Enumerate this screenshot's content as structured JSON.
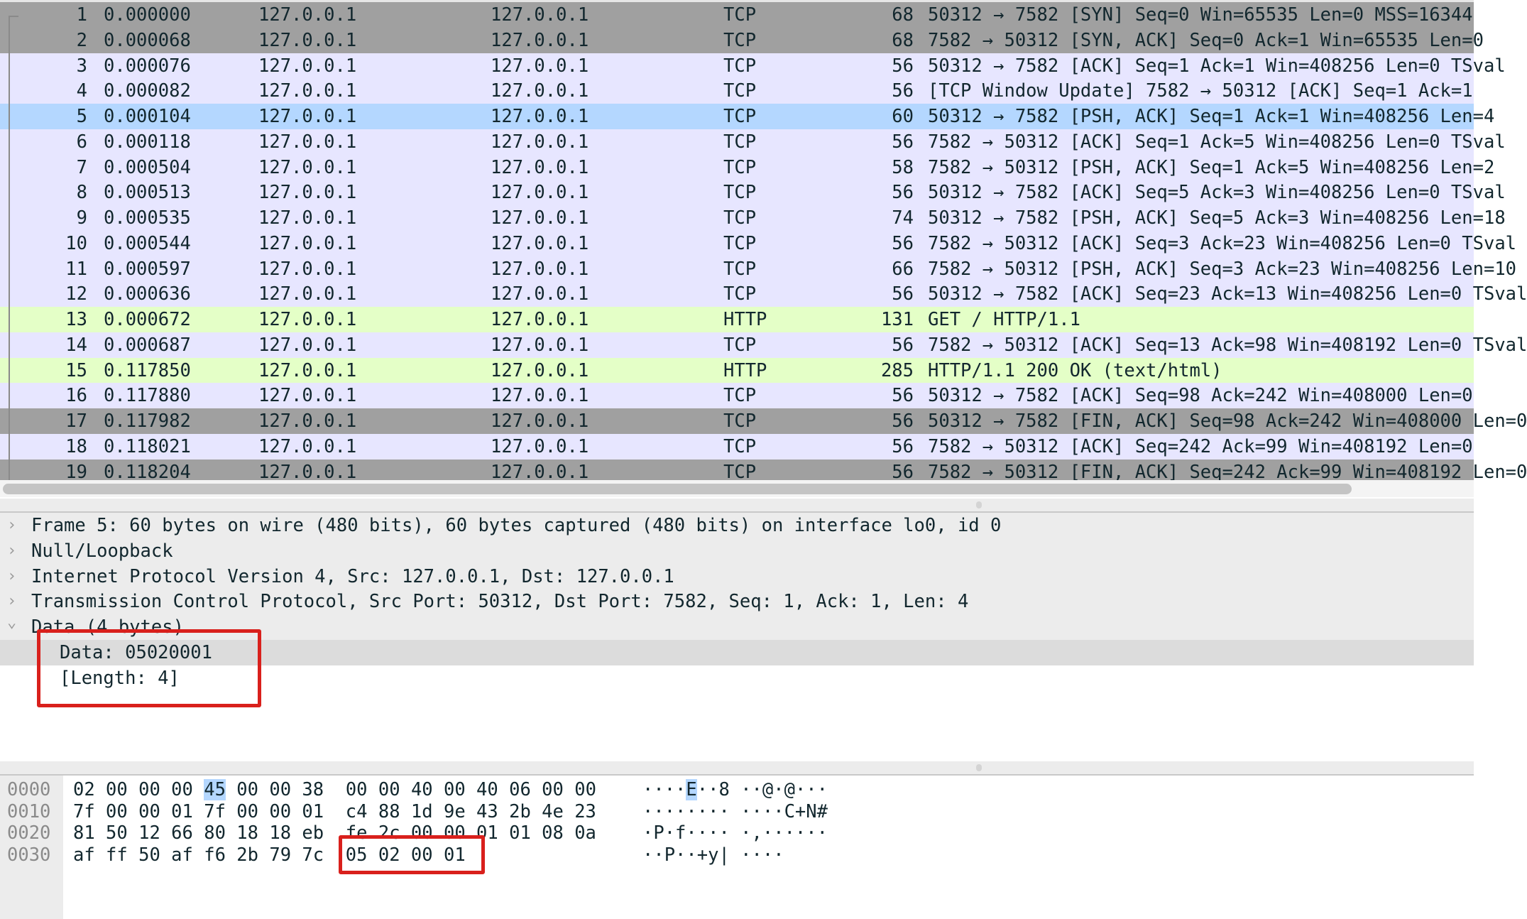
{
  "colors": {
    "row_gray": "#a0a0a0",
    "row_tcp": "#e7e6ff",
    "row_selected": "#b4d7ff",
    "row_http": "#e4ffc7",
    "annotation_red": "#d9201c"
  },
  "packet_list": {
    "rows": [
      {
        "no": "1",
        "time": "0.000000",
        "src": "127.0.0.1",
        "dst": "127.0.0.1",
        "proto": "TCP",
        "len": "68",
        "info": "50312 → 7582 [SYN] Seq=0 Win=65535 Len=0 MSS=16344",
        "style": "gray"
      },
      {
        "no": "2",
        "time": "0.000068",
        "src": "127.0.0.1",
        "dst": "127.0.0.1",
        "proto": "TCP",
        "len": "68",
        "info": "7582 → 50312 [SYN, ACK] Seq=0 Ack=1 Win=65535 Len=0",
        "style": "gray"
      },
      {
        "no": "3",
        "time": "0.000076",
        "src": "127.0.0.1",
        "dst": "127.0.0.1",
        "proto": "TCP",
        "len": "56",
        "info": "50312 → 7582 [ACK] Seq=1 Ack=1 Win=408256 Len=0 TSval",
        "style": "tcp"
      },
      {
        "no": "4",
        "time": "0.000082",
        "src": "127.0.0.1",
        "dst": "127.0.0.1",
        "proto": "TCP",
        "len": "56",
        "info": "[TCP Window Update] 7582 → 50312 [ACK] Seq=1 Ack=1",
        "style": "tcp"
      },
      {
        "no": "5",
        "time": "0.000104",
        "src": "127.0.0.1",
        "dst": "127.0.0.1",
        "proto": "TCP",
        "len": "60",
        "info": "50312 → 7582 [PSH, ACK] Seq=1 Ack=1 Win=408256 Len=4",
        "style": "selected"
      },
      {
        "no": "6",
        "time": "0.000118",
        "src": "127.0.0.1",
        "dst": "127.0.0.1",
        "proto": "TCP",
        "len": "56",
        "info": "7582 → 50312 [ACK] Seq=1 Ack=5 Win=408256 Len=0 TSval",
        "style": "tcp"
      },
      {
        "no": "7",
        "time": "0.000504",
        "src": "127.0.0.1",
        "dst": "127.0.0.1",
        "proto": "TCP",
        "len": "58",
        "info": "7582 → 50312 [PSH, ACK] Seq=1 Ack=5 Win=408256 Len=2",
        "style": "tcp"
      },
      {
        "no": "8",
        "time": "0.000513",
        "src": "127.0.0.1",
        "dst": "127.0.0.1",
        "proto": "TCP",
        "len": "56",
        "info": "50312 → 7582 [ACK] Seq=5 Ack=3 Win=408256 Len=0 TSval",
        "style": "tcp"
      },
      {
        "no": "9",
        "time": "0.000535",
        "src": "127.0.0.1",
        "dst": "127.0.0.1",
        "proto": "TCP",
        "len": "74",
        "info": "50312 → 7582 [PSH, ACK] Seq=5 Ack=3 Win=408256 Len=18",
        "style": "tcp"
      },
      {
        "no": "10",
        "time": "0.000544",
        "src": "127.0.0.1",
        "dst": "127.0.0.1",
        "proto": "TCP",
        "len": "56",
        "info": "7582 → 50312 [ACK] Seq=3 Ack=23 Win=408256 Len=0 TSval",
        "style": "tcp"
      },
      {
        "no": "11",
        "time": "0.000597",
        "src": "127.0.0.1",
        "dst": "127.0.0.1",
        "proto": "TCP",
        "len": "66",
        "info": "7582 → 50312 [PSH, ACK] Seq=3 Ack=23 Win=408256 Len=10",
        "style": "tcp"
      },
      {
        "no": "12",
        "time": "0.000636",
        "src": "127.0.0.1",
        "dst": "127.0.0.1",
        "proto": "TCP",
        "len": "56",
        "info": "50312 → 7582 [ACK] Seq=23 Ack=13 Win=408256 Len=0 TSval",
        "style": "tcp"
      },
      {
        "no": "13",
        "time": "0.000672",
        "src": "127.0.0.1",
        "dst": "127.0.0.1",
        "proto": "HTTP",
        "len": "131",
        "info": "GET / HTTP/1.1",
        "style": "http"
      },
      {
        "no": "14",
        "time": "0.000687",
        "src": "127.0.0.1",
        "dst": "127.0.0.1",
        "proto": "TCP",
        "len": "56",
        "info": "7582 → 50312 [ACK] Seq=13 Ack=98 Win=408192 Len=0 TSval",
        "style": "tcp"
      },
      {
        "no": "15",
        "time": "0.117850",
        "src": "127.0.0.1",
        "dst": "127.0.0.1",
        "proto": "HTTP",
        "len": "285",
        "info": "HTTP/1.1 200 OK  (text/html)",
        "style": "http"
      },
      {
        "no": "16",
        "time": "0.117880",
        "src": "127.0.0.1",
        "dst": "127.0.0.1",
        "proto": "TCP",
        "len": "56",
        "info": "50312 → 7582 [ACK] Seq=98 Ack=242 Win=408000 Len=0",
        "style": "tcp"
      },
      {
        "no": "17",
        "time": "0.117982",
        "src": "127.0.0.1",
        "dst": "127.0.0.1",
        "proto": "TCP",
        "len": "56",
        "info": "50312 → 7582 [FIN, ACK] Seq=98 Ack=242 Win=408000 Len=0",
        "style": "gray"
      },
      {
        "no": "18",
        "time": "0.118021",
        "src": "127.0.0.1",
        "dst": "127.0.0.1",
        "proto": "TCP",
        "len": "56",
        "info": "7582 → 50312 [ACK] Seq=242 Ack=99 Win=408192 Len=0",
        "style": "tcp"
      },
      {
        "no": "19",
        "time": "0.118204",
        "src": "127.0.0.1",
        "dst": "127.0.0.1",
        "proto": "TCP",
        "len": "56",
        "info": "7582 → 50312 [FIN, ACK] Seq=242 Ack=99 Win=408192 Len=0",
        "style": "gray"
      }
    ]
  },
  "details": {
    "rows": [
      {
        "text": "Frame 5: 60 bytes on wire (480 bits), 60 bytes captured (480 bits) on interface lo0, id 0",
        "expanded": false,
        "indent": 0,
        "bg": "#ececec"
      },
      {
        "text": "Null/Loopback",
        "expanded": false,
        "indent": 0,
        "bg": "#ececec"
      },
      {
        "text": "Internet Protocol Version 4, Src: 127.0.0.1, Dst: 127.0.0.1",
        "expanded": false,
        "indent": 0,
        "bg": "#ececec"
      },
      {
        "text": "Transmission Control Protocol, Src Port: 50312, Dst Port: 7582, Seq: 1, Ack: 1, Len: 4",
        "expanded": false,
        "indent": 0,
        "bg": "#ececec"
      },
      {
        "text": "Data (4 bytes)",
        "expanded": true,
        "indent": 0,
        "bg": "#ececec"
      },
      {
        "text": "Data: 05020001",
        "indent": 1,
        "bg": "#dcdcdc"
      },
      {
        "text": "[Length: 4]",
        "indent": 1,
        "bg": "#ffffff"
      }
    ]
  },
  "hex": {
    "rows": [
      {
        "offset": "0000",
        "bytes_pre": "02 00 00 00 ",
        "bytes_hl": "45",
        "bytes_post": " 00 00 38  00 00 40 00 40 06 00 00",
        "ascii_pre": "····",
        "ascii_hl": "E",
        "ascii_post": "··8 ··@·@···"
      },
      {
        "offset": "0010",
        "bytes_pre": "7f 00 00 01 7f 00 00 01  c4 88 1d 9e 43 2b 4e 23",
        "bytes_hl": "",
        "bytes_post": "",
        "ascii_pre": "········ ····C+N#",
        "ascii_hl": "",
        "ascii_post": ""
      },
      {
        "offset": "0020",
        "bytes_pre": "81 50 12 66 80 18 18 eb  fe 2c 00 00 01 01 08 0a",
        "bytes_hl": "",
        "bytes_post": "",
        "ascii_pre": "·P·f···· ·,······",
        "ascii_hl": "",
        "ascii_post": ""
      },
      {
        "offset": "0030",
        "bytes_pre": "af ff 50 af f6 2b 79 7c  05 02 00 01",
        "bytes_hl": "",
        "bytes_post": "",
        "ascii_pre": "··P··+y| ····",
        "ascii_hl": "",
        "ascii_post": ""
      }
    ]
  },
  "icons": {
    "collapsed": "chevron-right-icon",
    "expanded": "chevron-down-icon"
  }
}
